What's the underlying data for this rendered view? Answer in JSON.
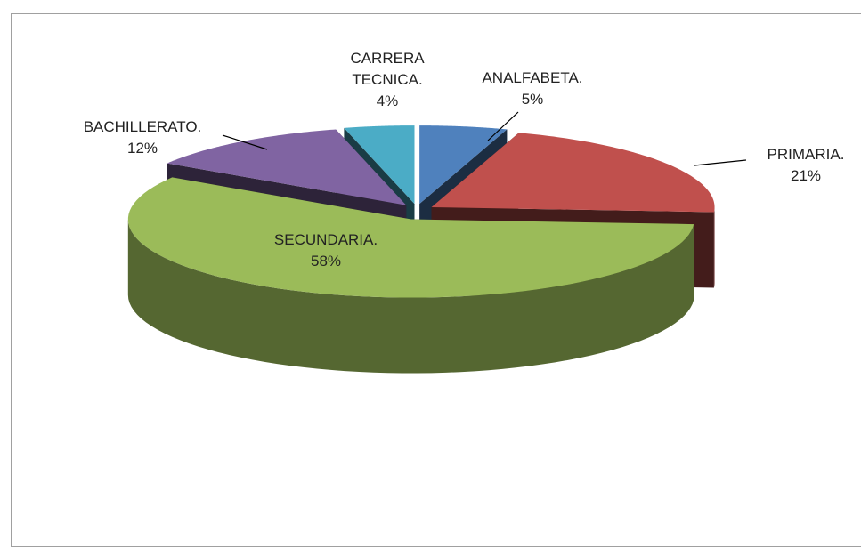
{
  "chart_data": {
    "type": "pie3d",
    "categories": [
      "ANALFABETA.",
      "PRIMARIA.",
      "SECUNDARIA.",
      "BACHILLERATO.",
      "CARRERA TECNICA."
    ],
    "values": [
      5,
      21,
      58,
      12,
      4
    ],
    "value_labels": [
      "5%",
      "21%",
      "58%",
      "12%",
      "4%"
    ],
    "colors": [
      "#4f81bd",
      "#c0504d",
      "#9bbb59",
      "#8064a2",
      "#4bacc6"
    ]
  }
}
